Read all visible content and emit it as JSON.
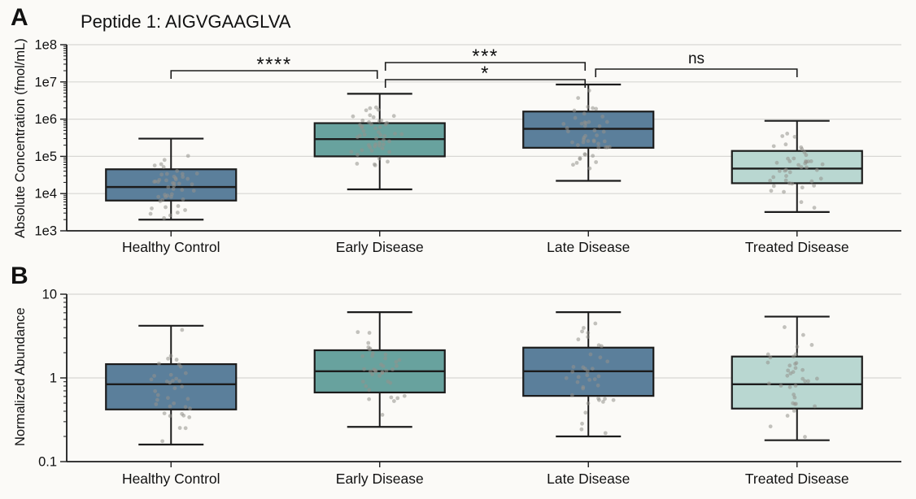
{
  "figure": {
    "background": "#fbfaf7",
    "axis_color": "#1c1c1c",
    "grid_color": "#d8d7d4",
    "point_color": "#93918c"
  },
  "chart_data": [
    {
      "type": "box",
      "panel_label": "A",
      "title": "Peptide 1: AIGVGAAGLVA",
      "ylabel": "Absolute Concentration (fmol/mL)",
      "yscale": "log",
      "ylim": [
        1000,
        100000000
      ],
      "ytick_labels": [
        "1e3",
        "1e4",
        "1e5",
        "1e6",
        "1e7",
        "1e8"
      ],
      "grid": true,
      "categories": [
        "Healthy Control",
        "Early Disease",
        "Late Disease",
        "Treated Disease"
      ],
      "boxes": [
        {
          "category": "Healthy Control",
          "color": "#5b7f9b",
          "whisker_low": 2000,
          "q1": 6500,
          "median": 15000,
          "q3": 45000,
          "whisker_high": 300000,
          "n_points": 46
        },
        {
          "category": "Early Disease",
          "color": "#68a29e",
          "whisker_low": 13000,
          "q1": 100000,
          "median": 290000,
          "q3": 780000,
          "whisker_high": 4800000,
          "n_points": 50
        },
        {
          "category": "Late Disease",
          "color": "#5b7f9b",
          "whisker_low": 22000,
          "q1": 170000,
          "median": 550000,
          "q3": 1600000,
          "whisker_high": 8500000,
          "n_points": 46
        },
        {
          "category": "Treated Disease",
          "color": "#b9d7d1",
          "whisker_low": 3200,
          "q1": 19000,
          "median": 47000,
          "q3": 140000,
          "whisker_high": 900000,
          "n_points": 42
        }
      ],
      "significance": [
        {
          "groups": [
            "Healthy Control",
            "Early Disease"
          ],
          "label": "****",
          "y": 87,
          "dx": [
            0,
            -3
          ]
        },
        {
          "groups": [
            "Early Disease",
            "Late Disease"
          ],
          "label": "***",
          "y": 77,
          "dx": [
            7,
            -4
          ]
        },
        {
          "groups": [
            "Early Disease",
            "Late Disease"
          ],
          "label": "*",
          "y": 98,
          "dx": [
            7,
            -4
          ]
        },
        {
          "groups": [
            "Late Disease",
            "Treated Disease"
          ],
          "label": "ns",
          "y": 85,
          "dx": [
            9,
            0
          ]
        }
      ]
    },
    {
      "type": "box",
      "panel_label": "B",
      "title": "",
      "ylabel": "Normalized Abundance",
      "yscale": "log",
      "ylim": [
        0.1,
        10
      ],
      "ytick_labels": [
        "0.1",
        "1",
        "10"
      ],
      "grid": true,
      "categories": [
        "Healthy Control",
        "Early Disease",
        "Late Disease",
        "Treated Disease"
      ],
      "boxes": [
        {
          "category": "Healthy Control",
          "color": "#5b7f9b",
          "whisker_low": 0.16,
          "q1": 0.42,
          "median": 0.84,
          "q3": 1.46,
          "whisker_high": 4.2,
          "n_points": 36
        },
        {
          "category": "Early Disease",
          "color": "#68a29e",
          "whisker_low": 0.26,
          "q1": 0.67,
          "median": 1.2,
          "q3": 2.14,
          "whisker_high": 6.1,
          "n_points": 38
        },
        {
          "category": "Late Disease",
          "color": "#5b7f9b",
          "whisker_low": 0.2,
          "q1": 0.61,
          "median": 1.2,
          "q3": 2.3,
          "whisker_high": 6.1,
          "n_points": 38
        },
        {
          "category": "Treated Disease",
          "color": "#b9d7d1",
          "whisker_low": 0.18,
          "q1": 0.43,
          "median": 0.84,
          "q3": 1.8,
          "whisker_high": 5.4,
          "n_points": 36
        }
      ],
      "significance": []
    }
  ]
}
